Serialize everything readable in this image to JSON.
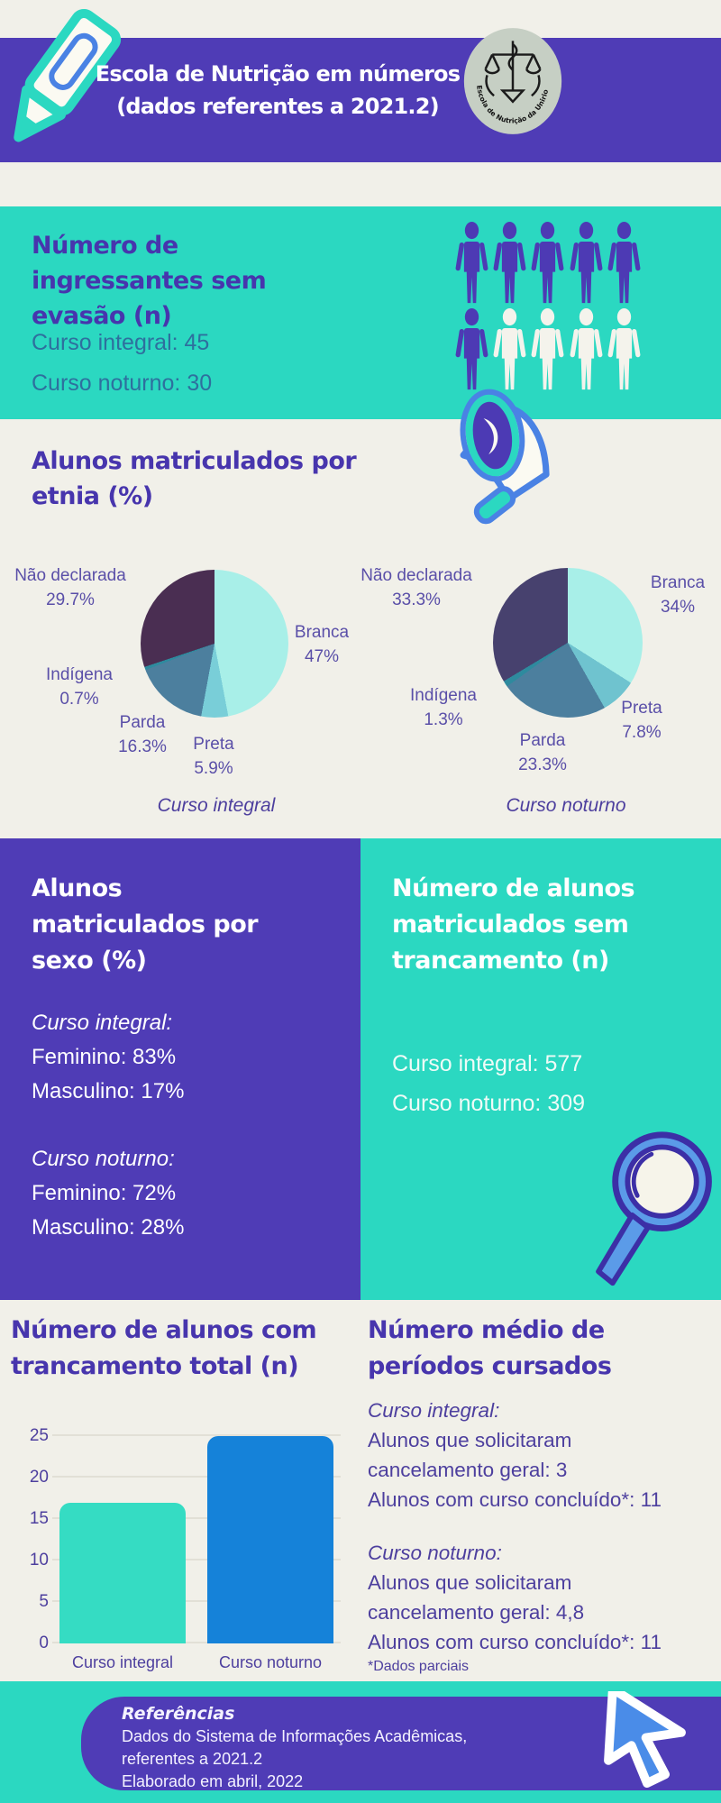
{
  "palette": {
    "purple": "#4f3cb6",
    "teal": "#2bd8c1",
    "cream": "#f1f0e9",
    "heading": "#4735ad",
    "steel": "#2e6f9e",
    "plabel": "#5a4fa8",
    "txtpurple": "#4d3f9e",
    "grid": "#e2e0d6"
  },
  "header": {
    "title_line1": "Escola de Nutrição em números",
    "title_line2": "(dados referentes a 2021.2)",
    "logo_text": "Escola de Nutrição da Unirio"
  },
  "ingressantes": {
    "title_lines": [
      "Número de",
      "ingressantes sem",
      "evasão (n)"
    ],
    "values": [
      "Curso integral: 45",
      "Curso noturno: 30"
    ]
  },
  "people": {
    "rows": [
      [
        1,
        1,
        1,
        1,
        1
      ],
      [
        1,
        0,
        0,
        0,
        0
      ]
    ],
    "on_color": "#4d3ab4",
    "off_color": "#f4f3ec"
  },
  "etnia": {
    "title_lines": [
      "Alunos matriculados por",
      "etnia (%)"
    ]
  },
  "sexo": {
    "title_lines": [
      "Alunos",
      "matriculados por",
      "sexo (%)"
    ],
    "groups": [
      {
        "heading": "Curso integral:",
        "lines": [
          "Feminino: 83%",
          "Masculino: 17%"
        ]
      },
      {
        "heading": "Curso noturno:",
        "lines": [
          "Feminino: 72%",
          "Masculino: 28%"
        ]
      }
    ]
  },
  "sem_trancamento": {
    "title_lines": [
      "Número de alunos",
      "matriculados sem",
      "trancamento (n)"
    ],
    "values": [
      "Curso integral: 577",
      "Curso noturno: 309"
    ]
  },
  "trancamento_total": {
    "title_lines": [
      "Número de alunos com",
      "trancamento total (n)"
    ]
  },
  "periodos": {
    "title_lines": [
      "Número médio de",
      "períodos cursados"
    ],
    "groups": [
      {
        "heading": "Curso integral:",
        "lines": [
          "Alunos que solicitaram",
          "cancelamento geral: 3",
          "Alunos com curso concluído*: 11"
        ]
      },
      {
        "heading": "Curso noturno:",
        "lines": [
          "Alunos que solicitaram",
          "cancelamento geral: 4,8",
          "Alunos com curso concluído*: 11"
        ]
      }
    ],
    "footnote": "*Dados parciais"
  },
  "footer": {
    "title": "Referências",
    "lines": [
      "Dados do Sistema de Informações Acadêmicas,",
      "referentes a 2021.2",
      "Elaborado em abril, 2022"
    ]
  },
  "chart_data": [
    {
      "type": "pie",
      "title": "Curso integral",
      "legend_position": "around",
      "slices": [
        {
          "label": "Branca",
          "pct": "47%",
          "value": 47,
          "color": "#a8efe8"
        },
        {
          "label": "Preta",
          "pct": "5.9%",
          "value": 5.9,
          "color": "#79ced8"
        },
        {
          "label": "Parda",
          "pct": "16.3%",
          "value": 16.3,
          "color": "#4c7f9e"
        },
        {
          "label": "Indígena",
          "pct": "0.7%",
          "value": 0.7,
          "color": "#2e8a9e"
        },
        {
          "label": "Não declarada",
          "pct": "29.7%",
          "value": 29.7,
          "color": "#4a2e52"
        }
      ]
    },
    {
      "type": "pie",
      "title": "Curso noturno",
      "legend_position": "around",
      "slices": [
        {
          "label": "Branca",
          "pct": "34%",
          "value": 34,
          "color": "#a8efe8"
        },
        {
          "label": "Preta",
          "pct": "7.8%",
          "value": 7.8,
          "color": "#6fc3cf"
        },
        {
          "label": "Parda",
          "pct": "23.3%",
          "value": 23.3,
          "color": "#4c7f9e"
        },
        {
          "label": "Indígena",
          "pct": "1.3%",
          "value": 1.3,
          "color": "#2e8a9e"
        },
        {
          "label": "Não declarada",
          "pct": "33.3%",
          "value": 33.3,
          "color": "#47416e"
        }
      ]
    },
    {
      "type": "bar",
      "title": "Número de alunos com trancamento total (n)",
      "categories": [
        "Curso integral",
        "Curso noturno"
      ],
      "values": [
        17,
        25
      ],
      "colors": [
        "#35dcc3",
        "#1582d9"
      ],
      "yticks": [
        0,
        5,
        10,
        15,
        20,
        25
      ],
      "ylim": [
        0,
        25
      ],
      "grid": true
    }
  ]
}
